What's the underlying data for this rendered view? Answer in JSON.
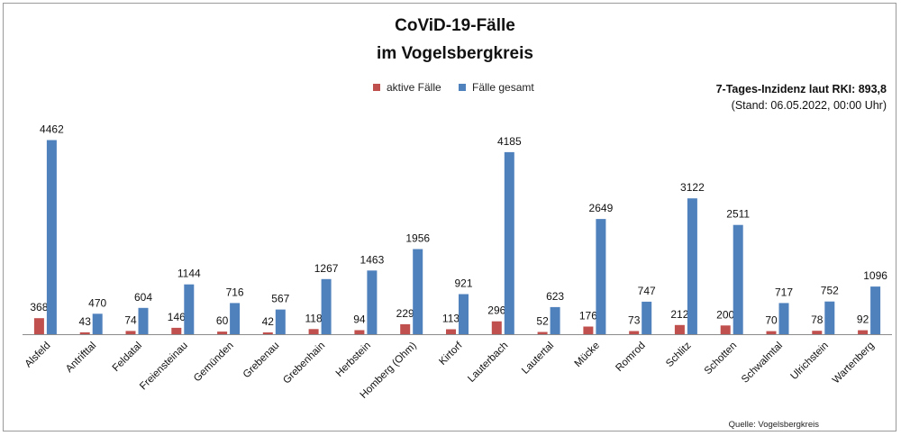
{
  "chart_data": {
    "type": "bar",
    "title_line1": "CoViD-19-Fälle",
    "title_line2": "im Vogelsbergkreis",
    "incidence": "7-Tages-Inzidenz laut RKI: 893,8",
    "stand": "(Stand: 06.05.2022, 00:00 Uhr)",
    "source": "Quelle: Vogelsbergkreis",
    "legend_position": "top-center",
    "grid": false,
    "ylim": [
      0,
      4700
    ],
    "categories": [
      "Alsfeld",
      "Antrifttal",
      "Feldatal",
      "Freiensteinau",
      "Gemünden",
      "Grebenau",
      "Grebenhain",
      "Herbstein",
      "Homberg (Ohm)",
      "Kirtorf",
      "Lauterbach",
      "Lautertal",
      "Mücke",
      "Romrod",
      "Schlitz",
      "Schotten",
      "Schwalmtal",
      "Ulrichstein",
      "Wartenberg"
    ],
    "series": [
      {
        "name": "aktive Fälle",
        "color": "#c0504d",
        "values": [
          368,
          43,
          74,
          146,
          60,
          42,
          118,
          94,
          229,
          113,
          296,
          52,
          176,
          73,
          212,
          200,
          70,
          78,
          92
        ]
      },
      {
        "name": "Fälle gesamt",
        "color": "#4f81bd",
        "values": [
          4462,
          470,
          604,
          1144,
          716,
          567,
          1267,
          1463,
          1956,
          921,
          4185,
          623,
          2649,
          747,
          3122,
          2511,
          717,
          752,
          1096
        ]
      }
    ]
  }
}
